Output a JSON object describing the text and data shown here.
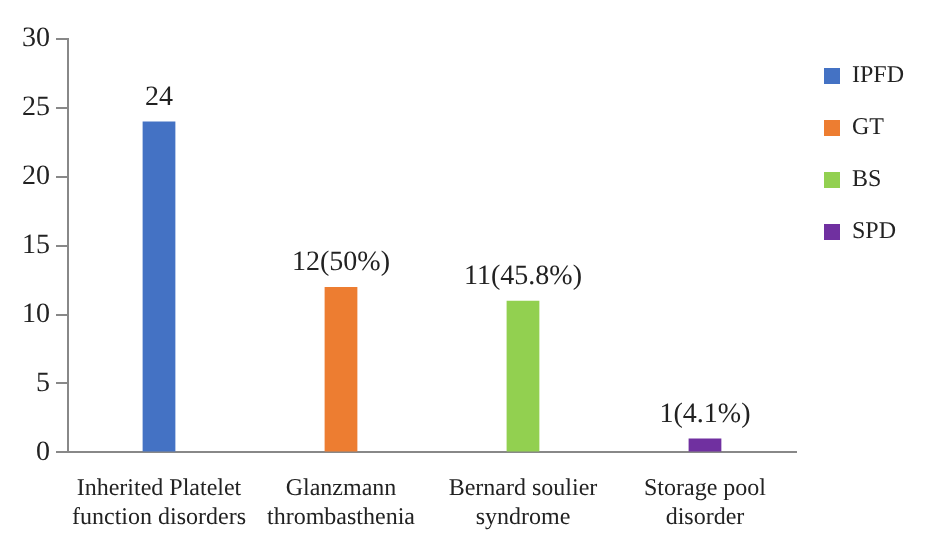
{
  "chart_data": {
    "type": "bar",
    "categories": [
      "Inherited Platelet function disorders",
      "Glanzmann thrombasthenia",
      "Bernard soulier syndrome",
      "Storage pool disorder"
    ],
    "series": [
      {
        "name": "IPFD",
        "color": "#4472c4",
        "values": [
          24,
          null,
          null,
          null
        ],
        "value_labels": [
          "24",
          null,
          null,
          null
        ]
      },
      {
        "name": "GT",
        "color": "#ed7d31",
        "values": [
          null,
          12,
          null,
          null
        ],
        "value_labels": [
          null,
          "12(50%)",
          null,
          null
        ]
      },
      {
        "name": "BS",
        "color": "#92d050",
        "values": [
          null,
          null,
          11,
          null
        ],
        "value_labels": [
          null,
          null,
          "11(45.8%)",
          null
        ]
      },
      {
        "name": "SPD",
        "color": "#7030a0",
        "values": [
          null,
          null,
          null,
          1
        ],
        "value_labels": [
          null,
          null,
          null,
          "1(4.1%)"
        ]
      }
    ],
    "ylim": [
      0,
      30
    ],
    "yticks": [
      0,
      5,
      10,
      15,
      20,
      25,
      30
    ],
    "grid": false,
    "legend": "top right"
  }
}
